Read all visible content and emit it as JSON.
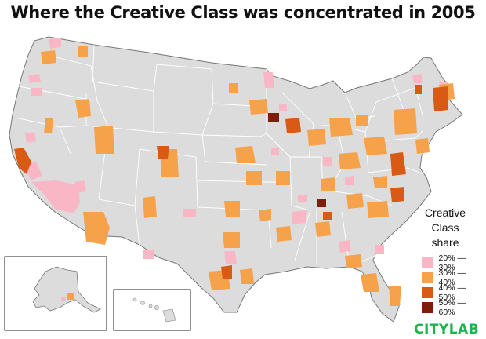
{
  "title": "Where the Creative Class was concentrated in 2005",
  "legend": {
    "title_lines": [
      "Creative",
      "Class",
      "share"
    ],
    "items": [
      {
        "label": "20% — 30%",
        "color": "#f9b7c6"
      },
      {
        "label": "30% — 40%",
        "color": "#f6a24b"
      },
      {
        "label": "40% — 50%",
        "color": "#d95a14"
      },
      {
        "label": "50% — 60%",
        "color": "#7d1d0b"
      }
    ]
  },
  "brand": "CITYLAB",
  "colors": {
    "land": "#dcdcdc",
    "border": "#ffffff",
    "outline": "#555555"
  }
}
